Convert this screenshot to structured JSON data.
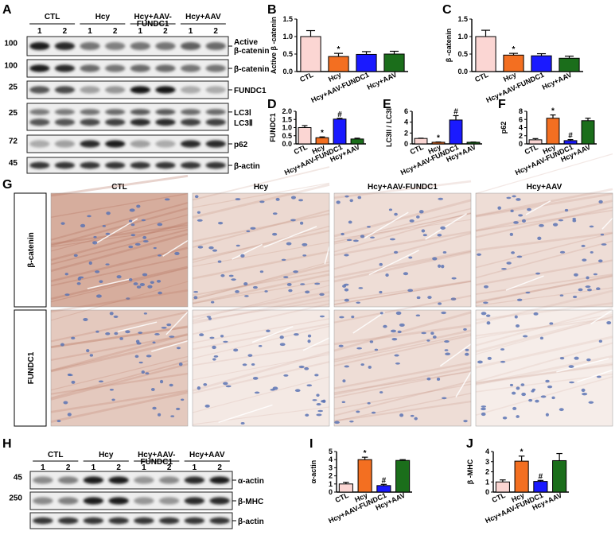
{
  "panels": {
    "A": "A",
    "B": "B",
    "C": "C",
    "D": "D",
    "E": "E",
    "F": "F",
    "G": "G",
    "H": "H",
    "I": "I",
    "J": "J"
  },
  "blotA": {
    "groups": [
      "CTL",
      "Hcy",
      "Hcy+AAV-\nFUNDC1",
      "Hcy+AAV"
    ],
    "lanes": [
      "1",
      "2",
      "1",
      "2",
      "1",
      "2",
      "1",
      "2"
    ],
    "rows": [
      {
        "mw": "100",
        "label": "Active\nβ-catenin",
        "intensity": [
          0.95,
          0.9,
          0.55,
          0.5,
          0.55,
          0.55,
          0.65,
          0.6
        ]
      },
      {
        "mw": "100",
        "label": "β-catenin",
        "intensity": [
          0.95,
          0.9,
          0.6,
          0.55,
          0.6,
          0.6,
          0.55,
          0.55
        ]
      },
      {
        "mw": "25",
        "label": "FUNDC1",
        "intensity": [
          0.7,
          0.75,
          0.35,
          0.4,
          1.0,
          1.0,
          0.3,
          0.3
        ]
      },
      {
        "mw": "25",
        "label": "LC3Ⅰ\nLC3Ⅱ",
        "intensity": [
          0.7,
          0.7,
          0.75,
          0.8,
          0.9,
          0.9,
          0.8,
          0.8
        ],
        "double": true
      },
      {
        "mw": "72",
        "label": "p62",
        "intensity": [
          0.3,
          0.35,
          0.9,
          0.95,
          0.35,
          0.3,
          0.9,
          0.9
        ]
      },
      {
        "mw": "45",
        "label": "β-actin",
        "intensity": [
          0.85,
          0.85,
          0.85,
          0.85,
          0.85,
          0.85,
          0.85,
          0.85
        ]
      }
    ]
  },
  "blotH": {
    "groups": [
      "CTL",
      "Hcy",
      "Hcy+AAV-\nFUNDC1",
      "Hcy+AAV"
    ],
    "lanes": [
      "1",
      "2",
      "1",
      "2",
      "1",
      "2",
      "1",
      "2"
    ],
    "rows": [
      {
        "mw": "45",
        "label": "α-actin",
        "intensity": [
          0.45,
          0.5,
          0.95,
          0.95,
          0.4,
          0.45,
          0.9,
          0.95
        ]
      },
      {
        "mw": "250",
        "label": "β-MHC",
        "intensity": [
          0.45,
          0.5,
          0.95,
          0.95,
          0.4,
          0.4,
          0.9,
          0.9
        ]
      },
      {
        "mw": "",
        "label": "β-actin",
        "intensity": [
          0.85,
          0.85,
          0.85,
          0.85,
          0.85,
          0.85,
          0.85,
          0.85
        ]
      }
    ]
  },
  "colors": {
    "CTL": "#fbd6d3",
    "Hcy": "#f36f21",
    "Hcy+AAV-FUNDC1": "#1a1aff",
    "Hcy+AAV": "#1b6e1b"
  },
  "chart_data": [
    {
      "panel": "B",
      "type": "bar",
      "ylabel": "Active β -catenin",
      "categories": [
        "CTL",
        "Hcy",
        "Hcy+AAV-FUNDC1",
        "Hcy+AAV"
      ],
      "values": [
        1.0,
        0.43,
        0.49,
        0.5
      ],
      "errors": [
        0.17,
        0.09,
        0.08,
        0.08
      ],
      "ylim": [
        0,
        1.5
      ],
      "yticks": [
        "0.0",
        "0.5",
        "1.0",
        "1.5"
      ],
      "marks": [
        "",
        "*",
        "",
        ""
      ]
    },
    {
      "panel": "C",
      "type": "bar",
      "ylabel": "β -catenin",
      "categories": [
        "CTL",
        "Hcy",
        "Hcy+AAV-FUNDC1",
        "Hcy+AAV"
      ],
      "values": [
        1.0,
        0.47,
        0.45,
        0.38
      ],
      "errors": [
        0.18,
        0.05,
        0.06,
        0.06
      ],
      "ylim": [
        0,
        1.5
      ],
      "yticks": [
        "0.0",
        "0.5",
        "1.0",
        "1.5"
      ],
      "marks": [
        "",
        "*",
        "",
        ""
      ]
    },
    {
      "panel": "D",
      "type": "bar",
      "ylabel": "FUNDC1",
      "categories": [
        "CTL",
        "Hcy",
        "Hcy+AAV-FUNDC1",
        "Hcy+AAV"
      ],
      "values": [
        1.0,
        0.38,
        1.52,
        0.3
      ],
      "errors": [
        0.12,
        0.05,
        0.05,
        0.05
      ],
      "ylim": [
        0,
        2.0
      ],
      "yticks": [
        "0.0",
        "0.5",
        "1.0",
        "1.5",
        "2.0"
      ],
      "marks": [
        "",
        "*",
        "#",
        ""
      ]
    },
    {
      "panel": "E",
      "type": "bar",
      "ylabel": "LC3II / LC3I",
      "categories": [
        "CTL",
        "Hcy",
        "Hcy+AAV-FUNDC1",
        "Hcy+AAV"
      ],
      "values": [
        1.0,
        0.3,
        4.4,
        0.3
      ],
      "errors": [
        0.05,
        0.05,
        0.8,
        0.04
      ],
      "ylim": [
        0,
        6
      ],
      "yticks": [
        "0",
        "2",
        "4",
        "6"
      ],
      "marks": [
        "",
        "*",
        "#",
        ""
      ]
    },
    {
      "panel": "F",
      "type": "bar",
      "ylabel": "p62",
      "categories": [
        "CTL",
        "Hcy",
        "Hcy+AAV-FUNDC1",
        "Hcy+AAV"
      ],
      "values": [
        1.0,
        6.3,
        0.8,
        5.7
      ],
      "errors": [
        0.3,
        0.8,
        0.25,
        0.6
      ],
      "ylim": [
        0,
        8
      ],
      "yticks": [
        "0",
        "2",
        "4",
        "6",
        "8"
      ],
      "marks": [
        "",
        "*",
        "#",
        ""
      ]
    },
    {
      "panel": "I",
      "type": "bar",
      "ylabel": "α-actin",
      "categories": [
        "CTL",
        "Hcy",
        "Hcy+AAV-FUNDC1",
        "Hcy+AAV"
      ],
      "values": [
        1.0,
        4.0,
        0.8,
        3.9
      ],
      "errors": [
        0.2,
        0.3,
        0.15,
        0.1
      ],
      "ylim": [
        0,
        5
      ],
      "yticks": [
        "0",
        "1",
        "2",
        "3",
        "4",
        "5"
      ],
      "marks": [
        "",
        "*",
        "#",
        ""
      ]
    },
    {
      "panel": "J",
      "type": "bar",
      "ylabel": "β -MHC",
      "categories": [
        "CTL",
        "Hcy",
        "Hcy+AAV-FUNDC1",
        "Hcy+AAV"
      ],
      "values": [
        1.0,
        3.05,
        1.05,
        3.1
      ],
      "errors": [
        0.2,
        0.5,
        0.1,
        0.7
      ],
      "ylim": [
        0,
        4
      ],
      "yticks": [
        "0",
        "1",
        "2",
        "3",
        "4"
      ],
      "marks": [
        "",
        "*",
        "#",
        ""
      ]
    }
  ],
  "histology": {
    "columns": [
      "CTL",
      "Hcy",
      "Hcy+AAV-FUNDC1",
      "Hcy+AAV"
    ],
    "rows": [
      {
        "label": "β-catenin",
        "stain": [
          0.9,
          0.35,
          0.3,
          0.3
        ]
      },
      {
        "label": "FUNDC1",
        "stain": [
          0.55,
          0.15,
          0.3,
          0.1
        ]
      }
    ]
  }
}
